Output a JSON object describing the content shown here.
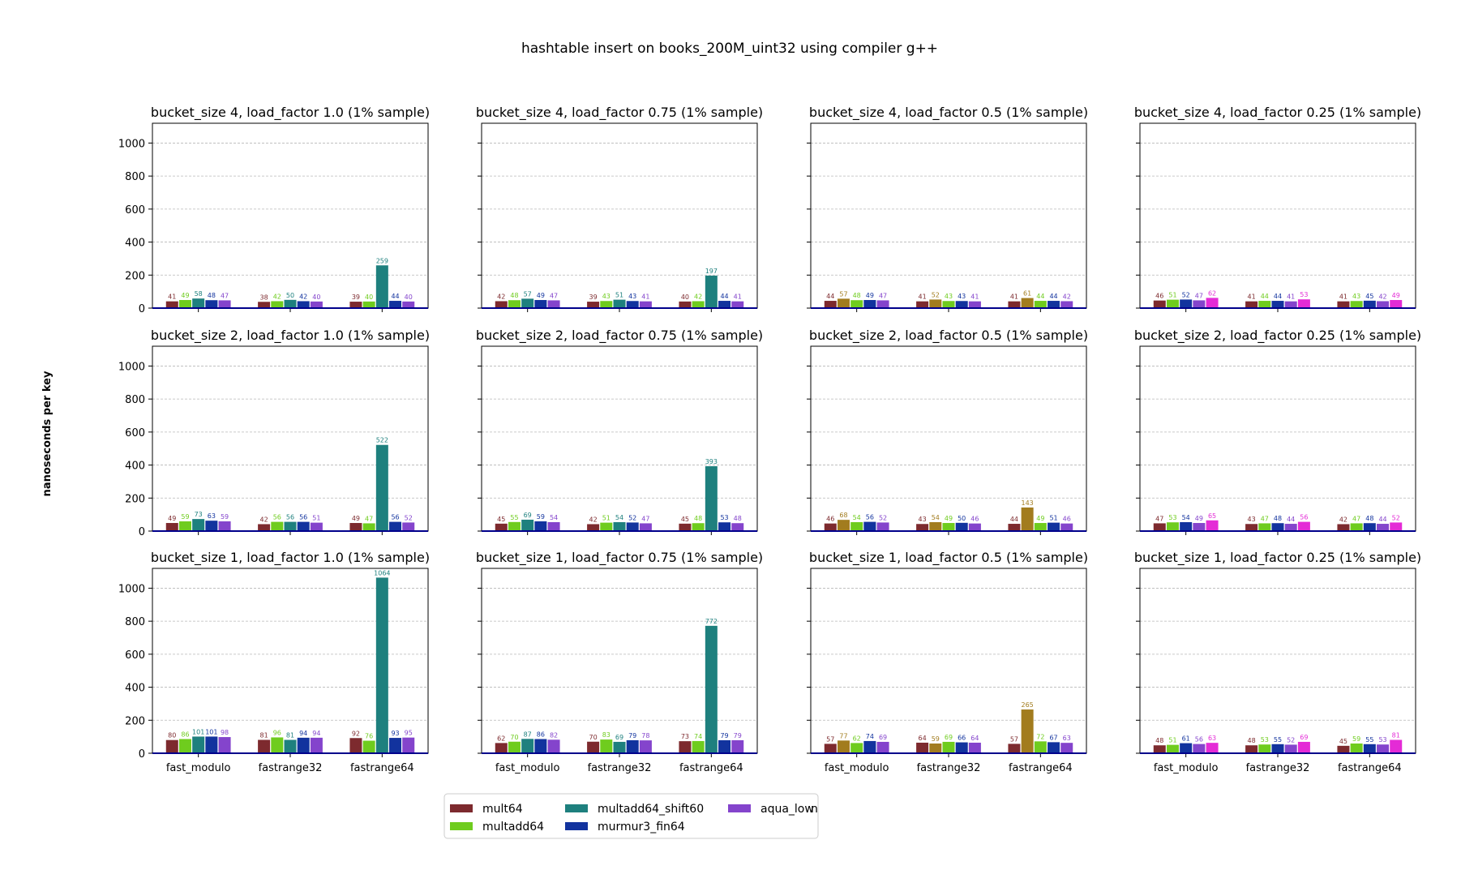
{
  "title": "hashtable insert on books_200M_uint32 using compiler g++",
  "ylabel": "nanoseconds per key",
  "ylim": [
    0,
    1120
  ],
  "yticks": [
    0,
    200,
    400,
    600,
    800,
    1000
  ],
  "categories": [
    "fast_modulo",
    "fastrange32",
    "fastrange64"
  ],
  "legend": [
    {
      "name": "mult64",
      "color": "#7d2a2e"
    },
    {
      "name": "multadd64",
      "color": "#6fcc1e"
    },
    {
      "name": "multadd64_shift60",
      "color": "#1e807e"
    },
    {
      "name": "murmur3_fin64",
      "color": "#12339e"
    },
    {
      "name": "aqua_low",
      "color": "#8444cc"
    }
  ],
  "legend_partial_text": "n",
  "colors": {
    "mult64": "#7d2a2e",
    "multadd64": "#6fcc1e",
    "multadd64_shift60": "#1e807e",
    "murmur3_fin64": "#12339e",
    "aqua_low": "#8444cc",
    "olive": "#a27c1e",
    "magenta": "#e42bd6"
  },
  "chart_data": [
    {
      "type": "bar",
      "title": "bucket_size 4, load_factor 1.0 (1% sample)",
      "series": [
        {
          "name": "mult64",
          "color": "#7d2a2e",
          "values": [
            41,
            38,
            39
          ]
        },
        {
          "name": "multadd64",
          "color": "#6fcc1e",
          "values": [
            49,
            42,
            40
          ]
        },
        {
          "name": "multadd64_shift60",
          "color": "#1e807e",
          "values": [
            58,
            50,
            259
          ]
        },
        {
          "name": "murmur3_fin64",
          "color": "#12339e",
          "values": [
            48,
            42,
            44
          ]
        },
        {
          "name": "aqua_low",
          "color": "#8444cc",
          "values": [
            47,
            40,
            40
          ]
        }
      ]
    },
    {
      "type": "bar",
      "title": "bucket_size 4, load_factor 0.75 (1% sample)",
      "series": [
        {
          "name": "mult64",
          "color": "#7d2a2e",
          "values": [
            42,
            39,
            40
          ]
        },
        {
          "name": "multadd64",
          "color": "#6fcc1e",
          "values": [
            48,
            43,
            42
          ]
        },
        {
          "name": "multadd64_shift60",
          "color": "#1e807e",
          "values": [
            57,
            51,
            197
          ]
        },
        {
          "name": "murmur3_fin64",
          "color": "#12339e",
          "values": [
            49,
            43,
            44
          ]
        },
        {
          "name": "aqua_low",
          "color": "#8444cc",
          "values": [
            47,
            41,
            41
          ]
        }
      ]
    },
    {
      "type": "bar",
      "title": "bucket_size 4, load_factor 0.5 (1% sample)",
      "series": [
        {
          "name": "mult64",
          "color": "#7d2a2e",
          "values": [
            44,
            41,
            41
          ]
        },
        {
          "name": "olive",
          "color": "#a27c1e",
          "values": [
            57,
            52,
            61
          ]
        },
        {
          "name": "multadd64",
          "color": "#6fcc1e",
          "values": [
            48,
            43,
            44
          ]
        },
        {
          "name": "murmur3_fin64",
          "color": "#12339e",
          "values": [
            49,
            43,
            44
          ]
        },
        {
          "name": "aqua_low",
          "color": "#8444cc",
          "values": [
            47,
            41,
            42
          ]
        }
      ]
    },
    {
      "type": "bar",
      "title": "bucket_size 4, load_factor 0.25 (1% sample)",
      "series": [
        {
          "name": "mult64",
          "color": "#7d2a2e",
          "values": [
            46,
            41,
            41
          ]
        },
        {
          "name": "multadd64",
          "color": "#6fcc1e",
          "values": [
            51,
            44,
            43
          ]
        },
        {
          "name": "murmur3_fin64",
          "color": "#12339e",
          "values": [
            52,
            44,
            45
          ]
        },
        {
          "name": "aqua_low",
          "color": "#8444cc",
          "values": [
            47,
            41,
            42
          ]
        },
        {
          "name": "magenta",
          "color": "#e42bd6",
          "values": [
            62,
            53,
            49
          ]
        }
      ]
    },
    {
      "type": "bar",
      "title": "bucket_size 2, load_factor 1.0 (1% sample)",
      "series": [
        {
          "name": "mult64",
          "color": "#7d2a2e",
          "values": [
            49,
            42,
            49
          ]
        },
        {
          "name": "multadd64",
          "color": "#6fcc1e",
          "values": [
            59,
            56,
            47
          ]
        },
        {
          "name": "multadd64_shift60",
          "color": "#1e807e",
          "values": [
            73,
            56,
            522
          ]
        },
        {
          "name": "murmur3_fin64",
          "color": "#12339e",
          "values": [
            63,
            56,
            56
          ]
        },
        {
          "name": "aqua_low",
          "color": "#8444cc",
          "values": [
            59,
            51,
            52
          ]
        }
      ]
    },
    {
      "type": "bar",
      "title": "bucket_size 2, load_factor 0.75 (1% sample)",
      "series": [
        {
          "name": "mult64",
          "color": "#7d2a2e",
          "values": [
            45,
            42,
            45
          ]
        },
        {
          "name": "multadd64",
          "color": "#6fcc1e",
          "values": [
            55,
            51,
            48
          ]
        },
        {
          "name": "multadd64_shift60",
          "color": "#1e807e",
          "values": [
            69,
            54,
            393
          ]
        },
        {
          "name": "murmur3_fin64",
          "color": "#12339e",
          "values": [
            59,
            52,
            53
          ]
        },
        {
          "name": "aqua_low",
          "color": "#8444cc",
          "values": [
            54,
            47,
            48
          ]
        }
      ]
    },
    {
      "type": "bar",
      "title": "bucket_size 2, load_factor 0.5 (1% sample)",
      "series": [
        {
          "name": "mult64",
          "color": "#7d2a2e",
          "values": [
            46,
            43,
            44
          ]
        },
        {
          "name": "olive",
          "color": "#a27c1e",
          "values": [
            68,
            54,
            143
          ]
        },
        {
          "name": "multadd64",
          "color": "#6fcc1e",
          "values": [
            54,
            49,
            49
          ]
        },
        {
          "name": "murmur3_fin64",
          "color": "#12339e",
          "values": [
            56,
            50,
            51
          ]
        },
        {
          "name": "aqua_low",
          "color": "#8444cc",
          "values": [
            52,
            46,
            46
          ]
        }
      ]
    },
    {
      "type": "bar",
      "title": "bucket_size 2, load_factor 0.25 (1% sample)",
      "series": [
        {
          "name": "mult64",
          "color": "#7d2a2e",
          "values": [
            47,
            43,
            42
          ]
        },
        {
          "name": "multadd64",
          "color": "#6fcc1e",
          "values": [
            53,
            47,
            47
          ]
        },
        {
          "name": "murmur3_fin64",
          "color": "#12339e",
          "values": [
            54,
            48,
            48
          ]
        },
        {
          "name": "aqua_low",
          "color": "#8444cc",
          "values": [
            49,
            44,
            44
          ]
        },
        {
          "name": "magenta",
          "color": "#e42bd6",
          "values": [
            65,
            56,
            52
          ]
        }
      ]
    },
    {
      "type": "bar",
      "title": "bucket_size 1, load_factor 1.0 (1% sample)",
      "series": [
        {
          "name": "mult64",
          "color": "#7d2a2e",
          "values": [
            80,
            81,
            92
          ]
        },
        {
          "name": "multadd64",
          "color": "#6fcc1e",
          "values": [
            86,
            96,
            76
          ]
        },
        {
          "name": "multadd64_shift60",
          "color": "#1e807e",
          "values": [
            101,
            81,
            1064
          ]
        },
        {
          "name": "murmur3_fin64",
          "color": "#12339e",
          "values": [
            101,
            94,
            93
          ]
        },
        {
          "name": "aqua_low",
          "color": "#8444cc",
          "values": [
            98,
            94,
            95
          ]
        }
      ]
    },
    {
      "type": "bar",
      "title": "bucket_size 1, load_factor 0.75 (1% sample)",
      "series": [
        {
          "name": "mult64",
          "color": "#7d2a2e",
          "values": [
            62,
            70,
            73
          ]
        },
        {
          "name": "multadd64",
          "color": "#6fcc1e",
          "values": [
            70,
            83,
            74
          ]
        },
        {
          "name": "multadd64_shift60",
          "color": "#1e807e",
          "values": [
            87,
            69,
            772
          ]
        },
        {
          "name": "murmur3_fin64",
          "color": "#12339e",
          "values": [
            86,
            79,
            79
          ]
        },
        {
          "name": "aqua_low",
          "color": "#8444cc",
          "values": [
            82,
            78,
            79
          ]
        }
      ]
    },
    {
      "type": "bar",
      "title": "bucket_size 1, load_factor 0.5 (1% sample)",
      "series": [
        {
          "name": "mult64",
          "color": "#7d2a2e",
          "values": [
            57,
            64,
            57
          ]
        },
        {
          "name": "olive",
          "color": "#a27c1e",
          "values": [
            77,
            59,
            265
          ]
        },
        {
          "name": "multadd64",
          "color": "#6fcc1e",
          "values": [
            62,
            69,
            72
          ]
        },
        {
          "name": "murmur3_fin64",
          "color": "#12339e",
          "values": [
            74,
            66,
            67
          ]
        },
        {
          "name": "aqua_low",
          "color": "#8444cc",
          "values": [
            69,
            64,
            63
          ]
        }
      ]
    },
    {
      "type": "bar",
      "title": "bucket_size 1, load_factor 0.25 (1% sample)",
      "series": [
        {
          "name": "mult64",
          "color": "#7d2a2e",
          "values": [
            48,
            48,
            45
          ]
        },
        {
          "name": "multadd64",
          "color": "#6fcc1e",
          "values": [
            51,
            53,
            59
          ]
        },
        {
          "name": "murmur3_fin64",
          "color": "#12339e",
          "values": [
            61,
            55,
            55
          ]
        },
        {
          "name": "aqua_low",
          "color": "#8444cc",
          "values": [
            56,
            52,
            53
          ]
        },
        {
          "name": "magenta",
          "color": "#e42bd6",
          "values": [
            63,
            69,
            81
          ]
        }
      ]
    }
  ]
}
